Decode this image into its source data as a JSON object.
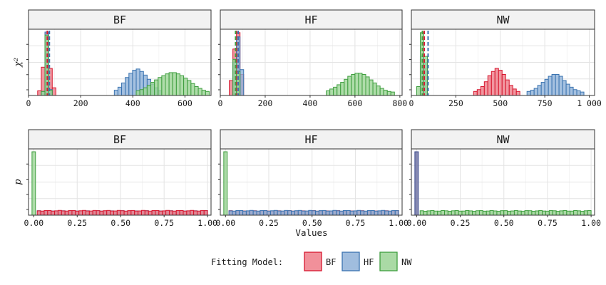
{
  "colors": {
    "BF": {
      "fill": "#ee7d88",
      "stroke": "#d7172f"
    },
    "HF": {
      "fill": "#8fb2d8",
      "stroke": "#3a73b0"
    },
    "NW": {
      "fill": "#9bd495",
      "stroke": "#3f9e3f"
    },
    "NW_p_zero_fill": "#6b6fa3",
    "NW_p_zero_stroke": "#3a4a8c"
  },
  "legend": {
    "title": "Fitting Model:",
    "items": [
      "BF",
      "HF",
      "NW"
    ]
  },
  "chart_data": [
    {
      "type": "bar",
      "panel": "chi2-BF",
      "row_label": "χ²",
      "strip": "BF",
      "xlim": [
        0,
        700
      ],
      "ylim": [
        0,
        1
      ],
      "xticks": [
        0,
        200,
        400,
        600
      ],
      "xtick_labels": [
        "0",
        "200",
        "400",
        "600"
      ],
      "binwidth": 14,
      "vlines": [
        {
          "model": "BF",
          "x": 72
        },
        {
          "model": "HF",
          "x": 80
        }
      ],
      "series": [
        {
          "name": "BF",
          "x": [
            42,
            56,
            70,
            84,
            98
          ],
          "values": [
            0.03,
            0.42,
            0.98,
            0.4,
            0.08
          ]
        },
        {
          "name": "HF",
          "x": [
            56,
            70,
            84
          ],
          "values": [
            0.02,
            1.0,
            0.05
          ]
        },
        {
          "name": "NW",
          "x": [
            56,
            70,
            84
          ],
          "values": [
            0.02,
            0.95,
            0.04
          ]
        },
        {
          "name": "HF",
          "x": [
            336,
            350,
            364,
            378,
            392,
            406,
            420,
            434,
            448,
            462,
            476,
            490,
            504
          ],
          "values": [
            0.04,
            0.09,
            0.16,
            0.25,
            0.32,
            0.37,
            0.39,
            0.35,
            0.29,
            0.22,
            0.14,
            0.08,
            0.03
          ]
        },
        {
          "name": "NW",
          "x": [
            420,
            434,
            448,
            462,
            476,
            490,
            504,
            518,
            532,
            546,
            560,
            574,
            588,
            602,
            616,
            630,
            644,
            658,
            672,
            686
          ],
          "values": [
            0.03,
            0.05,
            0.08,
            0.12,
            0.17,
            0.21,
            0.25,
            0.28,
            0.31,
            0.33,
            0.33,
            0.31,
            0.28,
            0.24,
            0.2,
            0.15,
            0.1,
            0.07,
            0.04,
            0.02
          ]
        }
      ]
    },
    {
      "type": "bar",
      "panel": "chi2-HF",
      "row_label": "",
      "strip": "HF",
      "xlim": [
        0,
        810
      ],
      "ylim": [
        0,
        1
      ],
      "xticks": [
        0,
        200,
        400,
        600,
        800
      ],
      "xtick_labels": [
        "0",
        "200",
        "400",
        "600",
        "800"
      ],
      "binwidth": 16,
      "vlines": [
        {
          "model": "BF",
          "x": 72
        },
        {
          "model": "HF",
          "x": 80
        },
        {
          "model": "NW",
          "x": 68
        }
      ],
      "series": [
        {
          "name": "BF",
          "x": [
            48,
            64,
            80,
            96
          ],
          "values": [
            0.2,
            0.72,
            0.99,
            0.3
          ]
        },
        {
          "name": "HF",
          "x": [
            64,
            80,
            96
          ],
          "values": [
            0.5,
            0.92,
            0.38
          ]
        },
        {
          "name": "NW",
          "x": [
            64,
            80
          ],
          "values": [
            0.55,
            0.35
          ]
        },
        {
          "name": "NW",
          "x": [
            480,
            496,
            512,
            528,
            544,
            560,
            576,
            592,
            608,
            624,
            640,
            656,
            672,
            688,
            704,
            720,
            736,
            752,
            768
          ],
          "values": [
            0.03,
            0.06,
            0.09,
            0.13,
            0.17,
            0.22,
            0.27,
            0.3,
            0.32,
            0.32,
            0.3,
            0.26,
            0.21,
            0.16,
            0.11,
            0.07,
            0.04,
            0.02,
            0.01
          ]
        }
      ]
    },
    {
      "type": "bar",
      "panel": "chi2-NW",
      "row_label": "",
      "strip": "NW",
      "xlim": [
        0,
        1030
      ],
      "ylim": [
        0,
        1
      ],
      "xticks": [
        0,
        250,
        500,
        750,
        1000
      ],
      "xtick_labels": [
        "0",
        "250",
        "500",
        "750",
        "1 000"
      ],
      "binwidth": 20,
      "vlines": [
        {
          "model": "BF",
          "x": 72
        },
        {
          "model": "HF",
          "x": 94
        },
        {
          "model": "NW",
          "x": 62
        }
      ],
      "series": [
        {
          "name": "BF",
          "x": [
            60,
            80
          ],
          "values": [
            0.55,
            0.4
          ]
        },
        {
          "name": "HF",
          "x": [
            60,
            80
          ],
          "values": [
            0.6,
            0.5
          ]
        },
        {
          "name": "NW",
          "x": [
            40,
            60,
            80
          ],
          "values": [
            0.1,
            0.99,
            0.6
          ]
        },
        {
          "name": "BF",
          "x": [
            360,
            380,
            400,
            420,
            440,
            460,
            480,
            500,
            520,
            540,
            560,
            580,
            600
          ],
          "values": [
            0.02,
            0.05,
            0.1,
            0.18,
            0.28,
            0.35,
            0.4,
            0.37,
            0.3,
            0.21,
            0.12,
            0.06,
            0.02
          ]
        },
        {
          "name": "HF",
          "x": [
            660,
            680,
            700,
            720,
            740,
            760,
            780,
            800,
            820,
            840,
            860,
            880,
            900,
            920,
            940,
            960
          ],
          "values": [
            0.02,
            0.04,
            0.07,
            0.12,
            0.17,
            0.22,
            0.27,
            0.3,
            0.3,
            0.27,
            0.2,
            0.14,
            0.09,
            0.05,
            0.03,
            0.01
          ]
        }
      ]
    },
    {
      "type": "bar",
      "panel": "p-BF",
      "row_label": "p",
      "strip": "BF",
      "xlim": [
        -0.03,
        1.02
      ],
      "ylim": [
        0,
        1
      ],
      "xticks": [
        0,
        0.25,
        0.5,
        0.75,
        1.0
      ],
      "xtick_labels": [
        "0.00",
        "0.25",
        "0.50",
        "0.75",
        "1.00"
      ],
      "binwidth": 0.02,
      "series": [
        {
          "name": "NW",
          "x": [
            0.0
          ],
          "values": [
            1.0
          ]
        },
        {
          "name": "HF",
          "flat": true,
          "from": 0.02,
          "to": 1.0,
          "level": 0.022
        },
        {
          "name": "BF",
          "flat": true,
          "from": 0.02,
          "to": 1.0,
          "level": 0.026
        }
      ]
    },
    {
      "type": "bar",
      "panel": "p-HF",
      "row_label": "",
      "strip": "HF",
      "xlim": [
        -0.03,
        1.02
      ],
      "ylim": [
        0,
        1
      ],
      "xticks": [
        0,
        0.25,
        0.5,
        0.75,
        1.0
      ],
      "xtick_labels": [
        "0.00",
        "0.25",
        "0.50",
        "0.75",
        "1.00"
      ],
      "binwidth": 0.02,
      "series": [
        {
          "name": "NW",
          "x": [
            0.0
          ],
          "values": [
            1.0
          ]
        },
        {
          "name": "BF",
          "flat": true,
          "from": 0.02,
          "to": 1.0,
          "level": 0.022
        },
        {
          "name": "HF",
          "flat": true,
          "from": 0.02,
          "to": 1.0,
          "level": 0.026
        }
      ]
    },
    {
      "type": "bar",
      "panel": "p-NW",
      "row_label": "",
      "strip": "NW",
      "xlim": [
        -0.03,
        1.02
      ],
      "ylim": [
        0,
        1
      ],
      "xticks": [
        0,
        0.25,
        0.5,
        0.75,
        1.0
      ],
      "xtick_labels": [
        "0.00",
        "0.25",
        "0.50",
        "0.75",
        "1.00"
      ],
      "binwidth": 0.02,
      "series": [
        {
          "name": "BF+HF",
          "x": [
            0.0
          ],
          "values": [
            1.0
          ],
          "special": "overlap"
        },
        {
          "name": "NW",
          "flat": true,
          "from": 0.02,
          "to": 1.0,
          "level": 0.024
        }
      ]
    }
  ],
  "x_axis_title": "Values"
}
